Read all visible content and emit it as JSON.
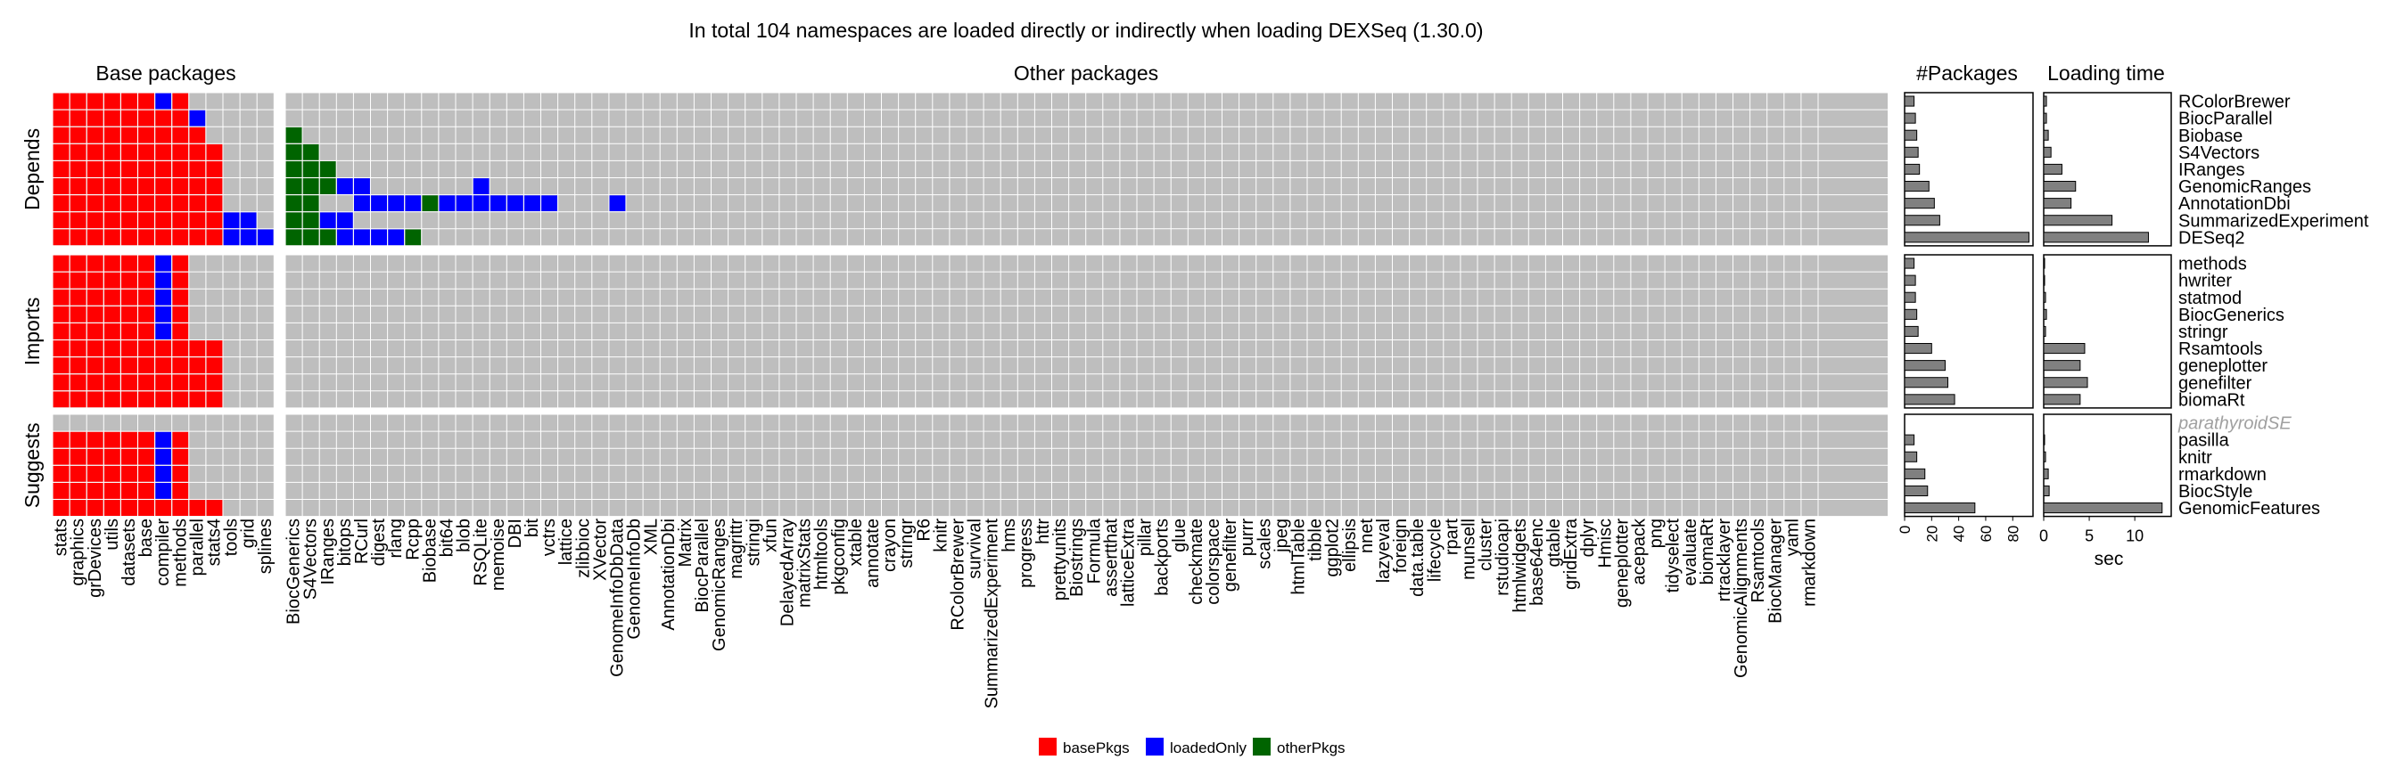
{
  "chart_data": {
    "type": "heatmap",
    "title": "In total 104 namespaces are loaded directly or indirectly when loading DEXSeq (1.30.0)",
    "base_panel_title": "Base packages",
    "other_panel_title": "Other packages",
    "packages_panel_title": "#Packages",
    "loading_panel_title": "Loading time",
    "loading_xlabel": "sec",
    "packages_ticks": [
      "0",
      "20",
      "40",
      "60",
      "80"
    ],
    "loading_ticks": [
      "0",
      "5",
      "10"
    ],
    "packages_axis_max": 95,
    "loading_axis_max": 14,
    "colors": {
      "basePkgs": "#ff0000",
      "loadedOnly": "#0000ff",
      "otherPkgs": "#006400",
      "background": "#bebebe",
      "bar": "#808080"
    },
    "legend": [
      {
        "key": "basePkgs",
        "label": "basePkgs"
      },
      {
        "key": "loadedOnly",
        "label": "loadedOnly"
      },
      {
        "key": "otherPkgs",
        "label": "otherPkgs"
      }
    ],
    "base_columns": [
      "stats",
      "graphics",
      "grDevices",
      "utils",
      "datasets",
      "base",
      "compiler",
      "methods",
      "parallel",
      "stats4",
      "tools",
      "grid",
      "splines"
    ],
    "other_columns": [
      "BiocGenerics",
      "S4Vectors",
      "IRanges",
      "bitops",
      "RCurl",
      "digest",
      "rlang",
      "Rcpp",
      "Biobase",
      "bit64",
      "blob",
      "RSQLite",
      "memoise",
      "DBI",
      "bit",
      "vctrs",
      "lattice",
      "zlibbioc",
      "XVector",
      "GenomeInfoDbData",
      "GenomeInfoDb",
      "XML",
      "AnnotationDbi",
      "Matrix",
      "BiocParallel",
      "GenomicRanges",
      "magrittr",
      "stringi",
      "xfun",
      "DelayedArray",
      "matrixStats",
      "htmltools",
      "pkgconfig",
      "xtable",
      "annotate",
      "crayon",
      "stringr",
      "R6",
      "knitr",
      "RColorBrewer",
      "survival",
      "SummarizedExperiment",
      "hms",
      "progress",
      "httr",
      "prettyunits",
      "Biostrings",
      "Formula",
      "assertthat",
      "latticeExtra",
      "pillar",
      "backports",
      "glue",
      "checkmate",
      "colorspace",
      "genefilter",
      "purrr",
      "scales",
      "jpeg",
      "htmlTable",
      "tibble",
      "ggplot2",
      "ellipsis",
      "nnet",
      "lazyeval",
      "foreign",
      "data.table",
      "lifecycle",
      "rpart",
      "munsell",
      "cluster",
      "rstudioapi",
      "htmlwidgets",
      "base64enc",
      "gtable",
      "gridExtra",
      "dplyr",
      "Hmisc",
      "geneplotter",
      "acepack",
      "png",
      "tidyselect",
      "evaluate",
      "biomaRt",
      "rtracklayer",
      "GenomicAlignments",
      "Rsamtools",
      "BiocManager",
      "yaml",
      "rmarkdown"
    ],
    "groups": [
      {
        "name": "Depends",
        "rows": [
          {
            "name": "RColorBrewer",
            "muted": false,
            "packages": 7,
            "loading": 0.3,
            "base": "bbbbbbor",
            "other": ""
          },
          {
            "name": "BiocParallel",
            "muted": false,
            "packages": 8,
            "loading": 0.3,
            "base": "bbbbbbrro",
            "other": ""
          },
          {
            "name": "Biobase",
            "muted": false,
            "packages": 9,
            "loading": 0.5,
            "base": "bbbbbbrrr",
            "other": "g"
          },
          {
            "name": "S4Vectors",
            "muted": false,
            "packages": 10,
            "loading": 0.8,
            "base": "bbbbbbrrrr",
            "other": "gg"
          },
          {
            "name": "IRanges",
            "muted": false,
            "packages": 11,
            "loading": 2.0,
            "base": "bbbbbbrrrr",
            "other": "ggg"
          },
          {
            "name": "GenomicRanges",
            "muted": false,
            "packages": 18,
            "loading": 3.5,
            "base": "bbbbbbrrrr",
            "other": "gggoo......o"
          },
          {
            "name": "AnnotationDbi",
            "muted": false,
            "packages": 22,
            "loading": 3.0,
            "base": "bbbbbbrrrr",
            "other": "gg..oooogooooooo...o"
          },
          {
            "name": "SummarizedExperiment",
            "muted": false,
            "packages": 26,
            "loading": 7.5,
            "base": "bbbbbbrrrroo",
            "other": "ggoo"
          },
          {
            "name": "DESeq2",
            "muted": false,
            "packages": 92,
            "loading": 11.5,
            "base": "bbbbbbrrrrooo",
            "other": "gggoooog"
          }
        ]
      },
      {
        "name": "Imports",
        "rows": [
          {
            "name": "methods",
            "muted": false,
            "packages": 7,
            "loading": 0.1,
            "base": "bbbbbbor",
            "other": ""
          },
          {
            "name": "hwriter",
            "muted": false,
            "packages": 8,
            "loading": 0.1,
            "base": "bbbbbbor",
            "other": ""
          },
          {
            "name": "statmod",
            "muted": false,
            "packages": 8,
            "loading": 0.2,
            "base": "bbbbbbor",
            "other": ""
          },
          {
            "name": "BiocGenerics",
            "muted": false,
            "packages": 9,
            "loading": 0.3,
            "base": "bbbbbbor",
            "other": ""
          },
          {
            "name": "stringr",
            "muted": false,
            "packages": 10,
            "loading": 0.2,
            "base": "bbbbbbor",
            "other": ""
          },
          {
            "name": "Rsamtools",
            "muted": false,
            "packages": 20,
            "loading": 4.5,
            "base": "bbbbbbrrrr",
            "other": ""
          },
          {
            "name": "geneplotter",
            "muted": false,
            "packages": 30,
            "loading": 4.0,
            "base": "bbbbbbrrrr",
            "other": ""
          },
          {
            "name": "genefilter",
            "muted": false,
            "packages": 32,
            "loading": 4.8,
            "base": "bbbbbbrrrr",
            "other": ""
          },
          {
            "name": "biomaRt",
            "muted": false,
            "packages": 37,
            "loading": 4.0,
            "base": "bbbbbbrrrr",
            "other": ""
          }
        ]
      },
      {
        "name": "Suggests",
        "rows": [
          {
            "name": "parathyroidSE",
            "muted": true,
            "packages": null,
            "loading": null,
            "base": "",
            "other": ""
          },
          {
            "name": "pasilla",
            "muted": false,
            "packages": 7,
            "loading": 0.0,
            "base": "bbbbbbor",
            "other": ""
          },
          {
            "name": "knitr",
            "muted": false,
            "packages": 9,
            "loading": 0.2,
            "base": "bbbbbbor",
            "other": ""
          },
          {
            "name": "rmarkdown",
            "muted": false,
            "packages": 15,
            "loading": 0.5,
            "base": "bbbbbbor",
            "other": ""
          },
          {
            "name": "BiocStyle",
            "muted": false,
            "packages": 17,
            "loading": 0.6,
            "base": "bbbbbbor",
            "other": ""
          },
          {
            "name": "GenomicFeatures",
            "muted": false,
            "packages": 52,
            "loading": 13.0,
            "base": "bbbbbbrrrr",
            "other": ""
          }
        ]
      }
    ]
  }
}
